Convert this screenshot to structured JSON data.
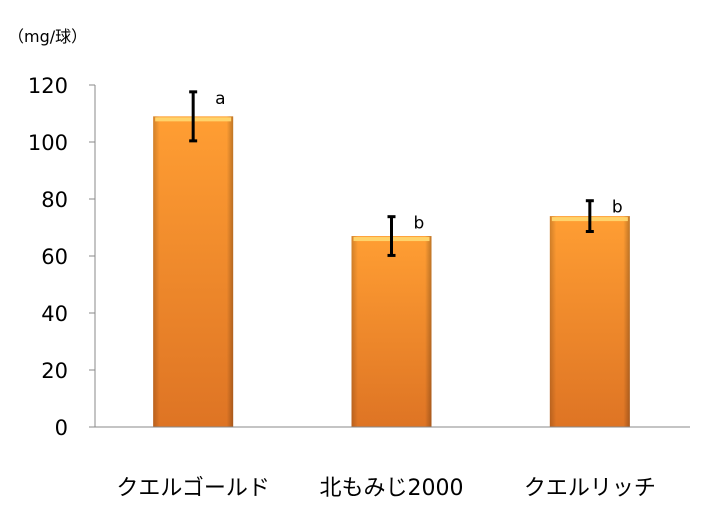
{
  "chart_data": {
    "type": "bar",
    "ylabel": "（mg/球）",
    "categories": [
      "クエルゴールド",
      "北もみじ2000",
      "クエルリッチ"
    ],
    "values": [
      109,
      67,
      74
    ],
    "errors": [
      8.6,
      6.8,
      5.4
    ],
    "significance_labels": [
      "a",
      "b",
      "b"
    ],
    "ylim": [
      0,
      120
    ],
    "yticks": [
      0,
      20,
      40,
      60,
      80,
      100,
      120
    ],
    "grid": false,
    "legend": "none",
    "bar_color": "#F7922E",
    "axis_color": "#888888"
  }
}
